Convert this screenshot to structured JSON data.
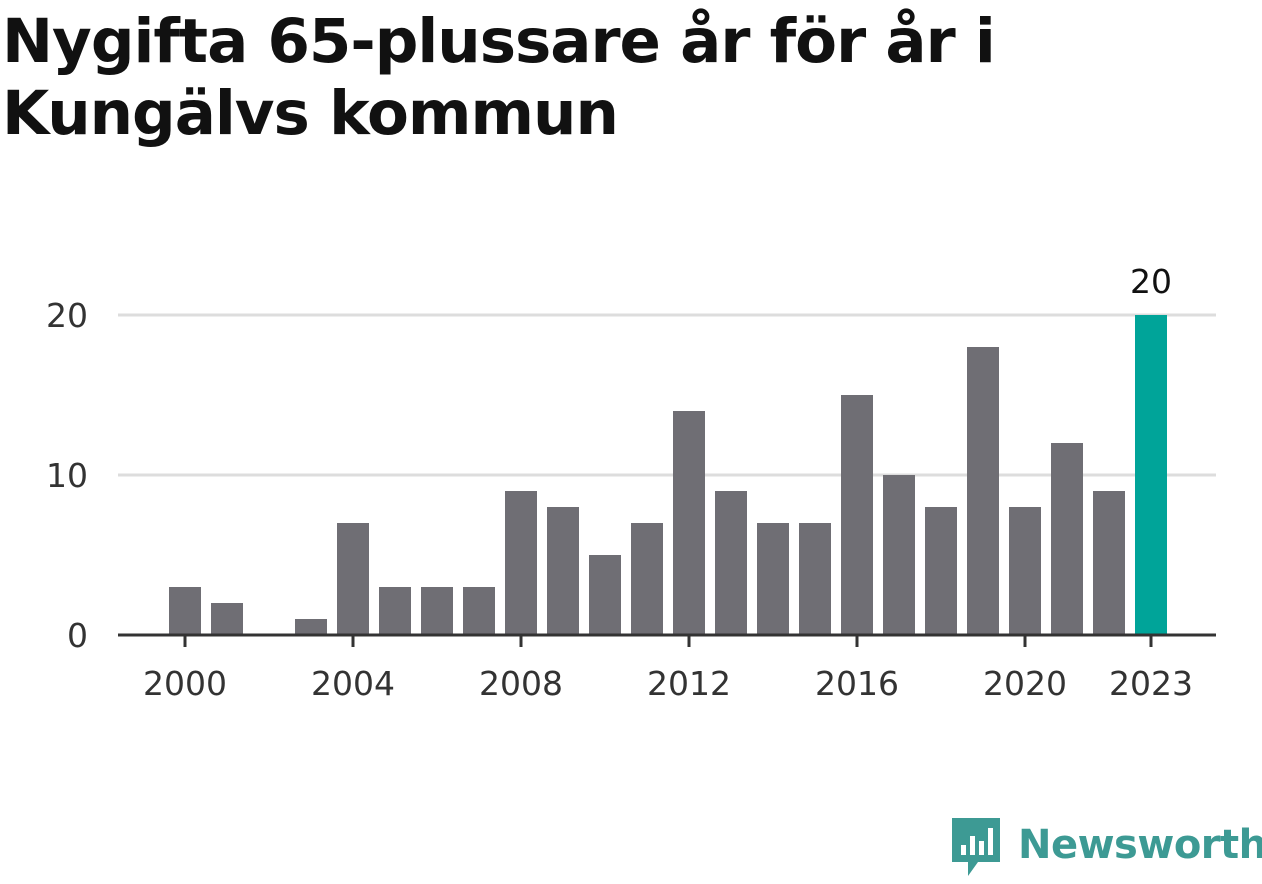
{
  "title": "Nygifta 65-plussare år för år i Kungälvs kommun",
  "brand": {
    "name": "Newsworthy",
    "color": "#3d9a94",
    "icon": "bar-chart-speech-bubble-icon"
  },
  "colors": {
    "bar": "#6f6e74",
    "highlight": "#00a499",
    "grid": "#dddddd",
    "axis": "#333333"
  },
  "chart_data": {
    "type": "bar",
    "title": "Nygifta 65-plussare år för år i Kungälvs kommun",
    "xlabel": "",
    "ylabel": "",
    "categories": [
      "2000",
      "2001",
      "2002",
      "2003",
      "2004",
      "2005",
      "2006",
      "2007",
      "2008",
      "2009",
      "2010",
      "2011",
      "2012",
      "2013",
      "2014",
      "2015",
      "2016",
      "2017",
      "2018",
      "2019",
      "2020",
      "2021",
      "2022",
      "2023"
    ],
    "values": [
      3,
      2,
      0,
      1,
      7,
      3,
      3,
      3,
      9,
      8,
      5,
      7,
      14,
      9,
      7,
      7,
      15,
      10,
      8,
      18,
      8,
      12,
      9,
      20
    ],
    "highlight": "2023",
    "data_labels": [
      {
        "category": "2023",
        "text": "20"
      }
    ],
    "x_tick_labels": [
      "2000",
      "2004",
      "2008",
      "2012",
      "2016",
      "2020",
      "2023"
    ],
    "y_ticks": [
      0,
      10,
      20
    ],
    "ylim": [
      0,
      20
    ],
    "grid": true,
    "legend": "none"
  }
}
